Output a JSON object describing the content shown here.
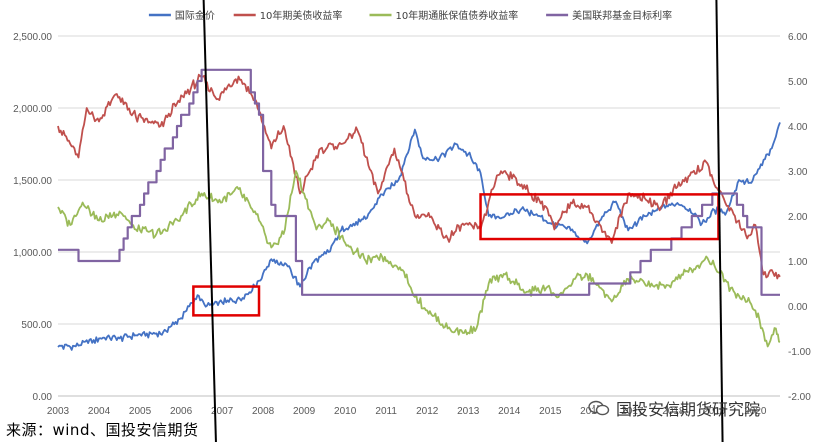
{
  "chart_data": {
    "type": "line",
    "legend": {
      "placement": "top",
      "entries": [
        {
          "name": "国际金价",
          "color": "#4472C4"
        },
        {
          "name": "10年期美债收益率",
          "color": "#C0504D"
        },
        {
          "name": "10年期通胀保值债券收益率",
          "color": "#9BBB59"
        },
        {
          "name": "美国联邦基金目标利率",
          "color": "#8064A2"
        }
      ]
    },
    "x_axis": {
      "ticks": [
        "2003",
        "2004",
        "2005",
        "2006",
        "2007",
        "2008",
        "2009",
        "2010",
        "2011",
        "2012",
        "2013",
        "2014",
        "2015",
        "2016",
        "2017",
        "2018",
        "2019",
        "2020"
      ],
      "range": [
        2003,
        2020.6
      ]
    },
    "y_left": {
      "ticks": [
        "0.00",
        "500.00",
        "1,000.00",
        "1,500.00",
        "2,000.00",
        "2,500.00"
      ],
      "range": [
        0,
        2500
      ]
    },
    "y_right": {
      "ticks": [
        "-2.00",
        "-1.00",
        "0.00",
        "1.00",
        "2.00",
        "3.00",
        "4.00",
        "5.00",
        "6.00"
      ],
      "range": [
        -2,
        6
      ]
    },
    "grid": "horizontal",
    "series": [
      {
        "name": "国际金价",
        "axis": "left",
        "color": "#4472C4",
        "points": [
          [
            2003.0,
            340
          ],
          [
            2003.5,
            350
          ],
          [
            2004.0,
            400
          ],
          [
            2004.5,
            400
          ],
          [
            2005.0,
            430
          ],
          [
            2005.5,
            430
          ],
          [
            2006.0,
            540
          ],
          [
            2006.4,
            700
          ],
          [
            2006.6,
            620
          ],
          [
            2007.0,
            650
          ],
          [
            2007.5,
            680
          ],
          [
            2007.9,
            800
          ],
          [
            2008.2,
            950
          ],
          [
            2008.6,
            900
          ],
          [
            2008.9,
            760
          ],
          [
            2009.2,
            920
          ],
          [
            2009.6,
            1000
          ],
          [
            2009.9,
            1150
          ],
          [
            2010.5,
            1230
          ],
          [
            2010.9,
            1400
          ],
          [
            2011.3,
            1500
          ],
          [
            2011.7,
            1850
          ],
          [
            2011.9,
            1650
          ],
          [
            2012.3,
            1650
          ],
          [
            2012.7,
            1750
          ],
          [
            2013.0,
            1680
          ],
          [
            2013.3,
            1550
          ],
          [
            2013.5,
            1250
          ],
          [
            2013.9,
            1250
          ],
          [
            2014.3,
            1300
          ],
          [
            2014.7,
            1250
          ],
          [
            2015.0,
            1200
          ],
          [
            2015.5,
            1150
          ],
          [
            2015.9,
            1060
          ],
          [
            2016.3,
            1250
          ],
          [
            2016.6,
            1350
          ],
          [
            2016.9,
            1150
          ],
          [
            2017.3,
            1250
          ],
          [
            2017.7,
            1300
          ],
          [
            2018.1,
            1340
          ],
          [
            2018.4,
            1300
          ],
          [
            2018.7,
            1200
          ],
          [
            2019.0,
            1290
          ],
          [
            2019.3,
            1280
          ],
          [
            2019.6,
            1500
          ],
          [
            2019.9,
            1480
          ],
          [
            2020.1,
            1580
          ],
          [
            2020.4,
            1720
          ],
          [
            2020.6,
            1900
          ]
        ]
      },
      {
        "name": "10年期美债收益率",
        "axis": "right",
        "color": "#C0504D",
        "points": [
          [
            2003.0,
            4.0
          ],
          [
            2003.3,
            3.6
          ],
          [
            2003.5,
            3.3
          ],
          [
            2003.7,
            4.4
          ],
          [
            2004.0,
            4.1
          ],
          [
            2004.4,
            4.7
          ],
          [
            2004.9,
            4.2
          ],
          [
            2005.5,
            4.0
          ],
          [
            2005.9,
            4.5
          ],
          [
            2006.5,
            5.1
          ],
          [
            2006.9,
            4.6
          ],
          [
            2007.4,
            5.1
          ],
          [
            2007.8,
            4.6
          ],
          [
            2008.2,
            3.5
          ],
          [
            2008.5,
            4.0
          ],
          [
            2008.9,
            2.5
          ],
          [
            2009.4,
            3.5
          ],
          [
            2009.9,
            3.6
          ],
          [
            2010.3,
            3.9
          ],
          [
            2010.8,
            2.5
          ],
          [
            2011.2,
            3.5
          ],
          [
            2011.7,
            2.0
          ],
          [
            2012.0,
            2.0
          ],
          [
            2012.5,
            1.5
          ],
          [
            2012.9,
            1.8
          ],
          [
            2013.3,
            1.7
          ],
          [
            2013.7,
            2.9
          ],
          [
            2013.9,
            3.0
          ],
          [
            2014.4,
            2.6
          ],
          [
            2014.9,
            2.2
          ],
          [
            2015.1,
            1.7
          ],
          [
            2015.5,
            2.3
          ],
          [
            2015.9,
            2.2
          ],
          [
            2016.5,
            1.4
          ],
          [
            2016.9,
            2.5
          ],
          [
            2017.3,
            2.4
          ],
          [
            2017.7,
            2.2
          ],
          [
            2018.0,
            2.6
          ],
          [
            2018.4,
            2.9
          ],
          [
            2018.8,
            3.2
          ],
          [
            2019.0,
            2.7
          ],
          [
            2019.5,
            2.0
          ],
          [
            2019.8,
            1.5
          ],
          [
            2020.0,
            1.8
          ],
          [
            2020.2,
            0.7
          ],
          [
            2020.4,
            0.8
          ],
          [
            2020.6,
            0.65
          ]
        ]
      },
      {
        "name": "10年期通胀保值债券收益率",
        "axis": "right",
        "color": "#9BBB59",
        "points": [
          [
            2003.0,
            2.2
          ],
          [
            2003.3,
            1.8
          ],
          [
            2003.6,
            2.3
          ],
          [
            2004.0,
            1.9
          ],
          [
            2004.5,
            2.1
          ],
          [
            2004.9,
            1.7
          ],
          [
            2005.5,
            1.6
          ],
          [
            2006.0,
            2.0
          ],
          [
            2006.5,
            2.5
          ],
          [
            2006.9,
            2.3
          ],
          [
            2007.4,
            2.6
          ],
          [
            2007.9,
            1.9
          ],
          [
            2008.2,
            1.3
          ],
          [
            2008.5,
            1.6
          ],
          [
            2008.8,
            3.0
          ],
          [
            2009.0,
            2.5
          ],
          [
            2009.3,
            1.7
          ],
          [
            2009.6,
            1.9
          ],
          [
            2010.0,
            1.4
          ],
          [
            2010.5,
            1.0
          ],
          [
            2010.9,
            1.1
          ],
          [
            2011.4,
            0.8
          ],
          [
            2011.7,
            0.2
          ],
          [
            2012.0,
            -0.1
          ],
          [
            2012.5,
            -0.5
          ],
          [
            2012.9,
            -0.6
          ],
          [
            2013.2,
            -0.5
          ],
          [
            2013.5,
            0.5
          ],
          [
            2013.9,
            0.7
          ],
          [
            2014.4,
            0.3
          ],
          [
            2014.9,
            0.4
          ],
          [
            2015.2,
            0.2
          ],
          [
            2015.6,
            0.6
          ],
          [
            2015.9,
            0.7
          ],
          [
            2016.5,
            0.1
          ],
          [
            2016.9,
            0.6
          ],
          [
            2017.3,
            0.5
          ],
          [
            2017.8,
            0.4
          ],
          [
            2018.2,
            0.7
          ],
          [
            2018.6,
            0.9
          ],
          [
            2018.8,
            1.1
          ],
          [
            2019.0,
            0.9
          ],
          [
            2019.4,
            0.4
          ],
          [
            2019.8,
            0.1
          ],
          [
            2020.0,
            -0.1
          ],
          [
            2020.3,
            -0.9
          ],
          [
            2020.5,
            -0.5
          ],
          [
            2020.6,
            -0.8
          ]
        ]
      },
      {
        "name": "美国联邦基金目标利率",
        "axis": "right",
        "color": "#8064A2",
        "step": true,
        "points": [
          [
            2003.0,
            1.25
          ],
          [
            2003.5,
            1.0
          ],
          [
            2004.5,
            1.25
          ],
          [
            2004.6,
            1.5
          ],
          [
            2004.7,
            1.75
          ],
          [
            2004.8,
            2.0
          ],
          [
            2005.0,
            2.25
          ],
          [
            2005.1,
            2.5
          ],
          [
            2005.2,
            2.75
          ],
          [
            2005.4,
            3.0
          ],
          [
            2005.5,
            3.25
          ],
          [
            2005.6,
            3.5
          ],
          [
            2005.8,
            3.75
          ],
          [
            2005.9,
            4.0
          ],
          [
            2006.0,
            4.25
          ],
          [
            2006.2,
            4.5
          ],
          [
            2006.3,
            4.75
          ],
          [
            2006.4,
            5.0
          ],
          [
            2006.5,
            5.25
          ],
          [
            2007.7,
            4.75
          ],
          [
            2007.8,
            4.5
          ],
          [
            2007.9,
            4.25
          ],
          [
            2008.0,
            3.0
          ],
          [
            2008.2,
            2.25
          ],
          [
            2008.3,
            2.0
          ],
          [
            2008.8,
            1.0
          ],
          [
            2008.95,
            0.25
          ],
          [
            2015.95,
            0.5
          ],
          [
            2016.95,
            0.75
          ],
          [
            2017.2,
            1.0
          ],
          [
            2017.45,
            1.25
          ],
          [
            2017.95,
            1.5
          ],
          [
            2018.2,
            1.75
          ],
          [
            2018.45,
            2.0
          ],
          [
            2018.7,
            2.25
          ],
          [
            2018.95,
            2.5
          ],
          [
            2019.55,
            2.25
          ],
          [
            2019.7,
            2.0
          ],
          [
            2019.8,
            1.75
          ],
          [
            2020.15,
            0.25
          ],
          [
            2020.6,
            0.25
          ]
        ]
      }
    ],
    "annotations": {
      "highlight_boxes": [
        {
          "x": [
            2006.3,
            2007.9
          ],
          "y_left": [
            560,
            760
          ]
        },
        {
          "x": [
            2013.3,
            2019.1
          ],
          "y_left": [
            1090,
            1400
          ]
        }
      ],
      "vertical_lines": [
        {
          "x_top": 2006.55,
          "x_bottom": 2006.85
        },
        {
          "x_top": 2019.05,
          "x_bottom": 2019.2
        }
      ]
    }
  },
  "source_text": "来源：wind、国投安信期货",
  "watermark_text": "国投安信期货研究院"
}
